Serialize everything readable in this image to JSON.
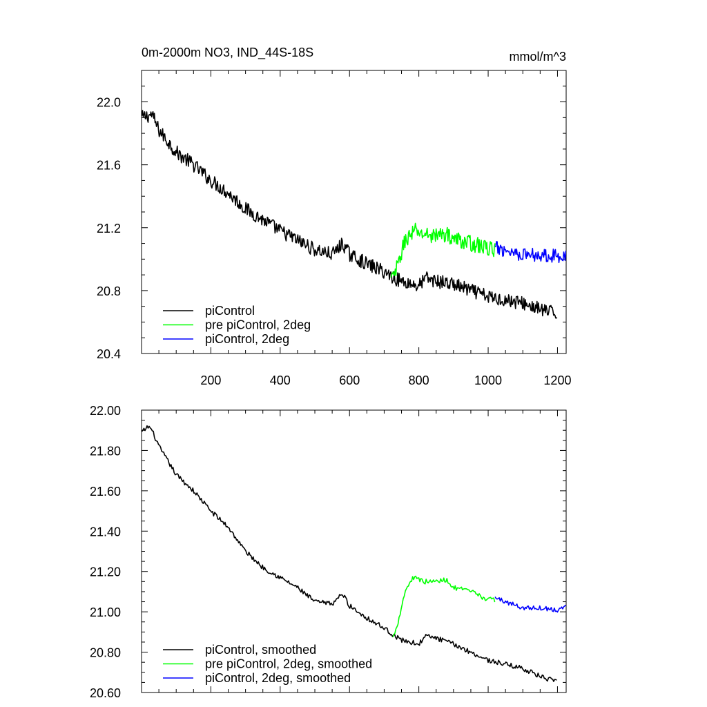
{
  "title": "0m-2000m NO3, IND_44S-18S",
  "units": "mmol/m^3",
  "colors": {
    "piControl": "#000000",
    "pre": "#00ff00",
    "twodeg": "#0000ff"
  },
  "chart_data": [
    {
      "type": "line",
      "xlim": [
        0,
        1225
      ],
      "ylim": [
        20.4,
        22.2
      ],
      "xticks": [
        200,
        400,
        600,
        800,
        1000,
        1200
      ],
      "xtick_labels": [
        "200",
        "400",
        "600",
        "800",
        "1000",
        "1200"
      ],
      "yticks": [
        20.4,
        20.8,
        21.2,
        21.6,
        22.0
      ],
      "ytick_labels": [
        "20.4",
        "20.8",
        "21.2",
        "21.6",
        "22.0"
      ],
      "legend_position": "bottom-left",
      "series": [
        {
          "name": "piControl",
          "color": "#000000",
          "x": [
            1,
            30,
            50,
            100,
            150,
            200,
            250,
            300,
            350,
            400,
            450,
            500,
            550,
            580,
            600,
            650,
            700,
            730,
            750,
            800,
            820,
            850,
            900,
            950,
            1000,
            1050,
            1100,
            1150,
            1200
          ],
          "y": [
            21.9,
            21.92,
            21.82,
            21.68,
            21.6,
            21.5,
            21.42,
            21.32,
            21.25,
            21.18,
            21.12,
            21.06,
            21.03,
            21.1,
            21.03,
            20.97,
            20.92,
            20.88,
            20.86,
            20.83,
            20.88,
            20.86,
            20.84,
            20.8,
            20.76,
            20.74,
            20.72,
            20.68,
            20.65
          ],
          "noise": 0.045,
          "step": 2
        },
        {
          "name": "pre piControl, 2deg",
          "color": "#00ff00",
          "x": [
            720,
            730,
            745,
            760,
            775,
            790,
            810,
            850,
            880,
            900,
            950,
            1000,
            1020
          ],
          "y": [
            20.87,
            20.9,
            21.0,
            21.12,
            21.15,
            21.18,
            21.16,
            21.15,
            21.16,
            21.13,
            21.1,
            21.07,
            21.06
          ],
          "noise": 0.05,
          "step": 2
        },
        {
          "name": "piControl, 2deg",
          "color": "#0000ff",
          "x": [
            1020,
            1050,
            1100,
            1150,
            1200,
            1225
          ],
          "y": [
            21.07,
            21.06,
            21.03,
            21.03,
            21.02,
            21.03
          ],
          "noise": 0.045,
          "step": 2
        }
      ]
    },
    {
      "type": "line",
      "xlim": [
        0,
        1225
      ],
      "ylim": [
        20.6,
        22.0
      ],
      "xticks": [
        200,
        400,
        600,
        800,
        1000,
        1200
      ],
      "yticks": [
        20.6,
        20.8,
        21.0,
        21.2,
        21.4,
        21.6,
        21.8,
        22.0
      ],
      "ytick_labels": [
        "20.60",
        "20.80",
        "21.00",
        "21.20",
        "21.40",
        "21.60",
        "21.80",
        "22.00"
      ],
      "legend_position": "bottom-left",
      "series": [
        {
          "name": "piControl, smoothed",
          "color": "#000000",
          "x": [
            1,
            20,
            30,
            50,
            100,
            150,
            200,
            250,
            300,
            350,
            400,
            450,
            500,
            550,
            580,
            600,
            650,
            700,
            730,
            750,
            800,
            820,
            850,
            900,
            950,
            1000,
            1050,
            1100,
            1150,
            1200
          ],
          "y": [
            21.89,
            21.92,
            21.9,
            21.82,
            21.68,
            21.6,
            21.5,
            21.42,
            21.3,
            21.22,
            21.17,
            21.12,
            21.05,
            21.04,
            21.09,
            21.03,
            20.97,
            20.92,
            20.88,
            20.86,
            20.84,
            20.88,
            20.87,
            20.84,
            20.8,
            20.76,
            20.74,
            20.72,
            20.68,
            20.65
          ],
          "noise": 0.012,
          "step": 3
        },
        {
          "name": "pre piControl, 2deg, smoothed",
          "color": "#00ff00",
          "x": [
            725,
            740,
            760,
            775,
            790,
            810,
            850,
            880,
            900,
            950,
            1000,
            1020
          ],
          "y": [
            20.87,
            20.95,
            21.1,
            21.15,
            21.18,
            21.15,
            21.15,
            21.16,
            21.12,
            21.1,
            21.06,
            21.06
          ],
          "noise": 0.012,
          "step": 3
        },
        {
          "name": "piControl, 2deg, smoothed",
          "color": "#0000ff",
          "x": [
            1020,
            1050,
            1100,
            1150,
            1200,
            1225
          ],
          "y": [
            21.07,
            21.05,
            21.02,
            21.02,
            21.01,
            21.03
          ],
          "noise": 0.012,
          "step": 3
        }
      ]
    }
  ]
}
